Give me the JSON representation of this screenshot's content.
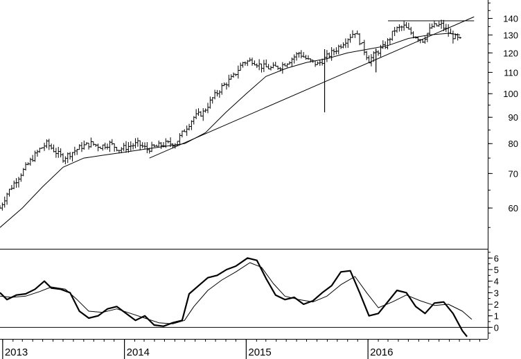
{
  "chart_data": [
    {
      "type": "bar",
      "subtype": "ohlc-weekly",
      "title": "",
      "ylabel": "",
      "yscale": "log",
      "ylim": [
        50,
        152
      ],
      "price_ticks": [
        "60",
        "70",
        "80",
        "90",
        "100",
        "110",
        "120",
        "130",
        "140"
      ],
      "price_tick_values": [
        60,
        70,
        80,
        90,
        100,
        110,
        120,
        130,
        140
      ],
      "price_path": [
        [
          "2012-12-24",
          60
        ],
        [
          "2013-01-14",
          64
        ],
        [
          "2013-02-04",
          67
        ],
        [
          "2013-02-25",
          70
        ],
        [
          "2013-03-25",
          74
        ],
        [
          "2013-04-22",
          78
        ],
        [
          "2013-05-13",
          80
        ],
        [
          "2013-06-10",
          77
        ],
        [
          "2013-07-01",
          75
        ],
        [
          "2013-07-29",
          77
        ],
        [
          "2013-08-26",
          79
        ],
        [
          "2013-09-23",
          80
        ],
        [
          "2013-10-21",
          79
        ],
        [
          "2013-11-18",
          80
        ],
        [
          "2013-12-16",
          78
        ],
        [
          "2014-01-13",
          79
        ],
        [
          "2014-02-10",
          80
        ],
        [
          "2014-03-10",
          78
        ],
        [
          "2014-04-07",
          79
        ],
        [
          "2014-05-05",
          80
        ],
        [
          "2014-06-02",
          80
        ],
        [
          "2014-06-30",
          85
        ],
        [
          "2014-07-28",
          90
        ],
        [
          "2014-08-25",
          92
        ],
        [
          "2014-09-22",
          98
        ],
        [
          "2014-10-20",
          103
        ],
        [
          "2014-11-24",
          108
        ],
        [
          "2014-12-22",
          115
        ],
        [
          "2015-01-19",
          116
        ],
        [
          "2015-02-16",
          113
        ],
        [
          "2015-03-16",
          112
        ],
        [
          "2015-04-13",
          113
        ],
        [
          "2015-05-11",
          116
        ],
        [
          "2015-06-08",
          120
        ],
        [
          "2015-07-06",
          116
        ],
        [
          "2015-08-03",
          114
        ],
        [
          "2015-08-31",
          118
        ],
        [
          "2015-09-28",
          122
        ],
        [
          "2015-10-26",
          127
        ],
        [
          "2015-11-23",
          132
        ],
        [
          "2015-12-14",
          124
        ],
        [
          "2016-01-04",
          116
        ],
        [
          "2016-01-25",
          120
        ],
        [
          "2016-02-22",
          124
        ],
        [
          "2016-03-21",
          133
        ],
        [
          "2016-04-18",
          135
        ],
        [
          "2016-05-16",
          130
        ],
        [
          "2016-06-13",
          127
        ],
        [
          "2016-07-11",
          135
        ],
        [
          "2016-08-08",
          136
        ],
        [
          "2016-09-05",
          130
        ],
        [
          "2016-10-03",
          127
        ]
      ],
      "bar_wiggle_pct": 2.2,
      "spikes": [
        {
          "date": "2015-08-24",
          "low": 92,
          "high": 122
        },
        {
          "date": "2016-01-25",
          "low": 110,
          "high": 122
        }
      ],
      "moving_average": [
        [
          "2012-12-24",
          55
        ],
        [
          "2013-03-01",
          60
        ],
        [
          "2013-05-01",
          66
        ],
        [
          "2013-07-01",
          72
        ],
        [
          "2013-09-01",
          75
        ],
        [
          "2013-11-01",
          76
        ],
        [
          "2014-01-01",
          77
        ],
        [
          "2014-03-01",
          78
        ],
        [
          "2014-05-01",
          79
        ],
        [
          "2014-07-01",
          80
        ],
        [
          "2014-09-01",
          84
        ],
        [
          "2014-11-01",
          92
        ],
        [
          "2015-01-01",
          100
        ],
        [
          "2015-03-01",
          108
        ],
        [
          "2015-05-01",
          112
        ],
        [
          "2015-07-01",
          115
        ],
        [
          "2015-09-01",
          117
        ],
        [
          "2015-11-01",
          120
        ],
        [
          "2016-01-01",
          122
        ],
        [
          "2016-03-01",
          124
        ],
        [
          "2016-05-01",
          128
        ],
        [
          "2016-07-01",
          130
        ],
        [
          "2016-09-01",
          131
        ],
        [
          "2016-10-03",
          130
        ]
      ],
      "trendlines": [
        {
          "name": "support",
          "points": [
            [
              "2014-03-17",
              75
            ],
            [
              "2016-11-14",
              141
            ]
          ]
        },
        {
          "name": "resistance",
          "points": [
            [
              "2016-03-01",
              138.5
            ],
            [
              "2016-11-14",
              138.5
            ]
          ]
        }
      ]
    },
    {
      "type": "line",
      "subtype": "oscillator",
      "title": "",
      "ylabel": "",
      "ylim": [
        -1,
        6.8
      ],
      "ticks": [
        "0",
        "1",
        "2",
        "3",
        "4",
        "5",
        "6"
      ],
      "tick_values": [
        0,
        1,
        2,
        3,
        4,
        5,
        6
      ],
      "zero_line": 0,
      "series": [
        {
          "name": "",
          "style": "thick",
          "points": [
            [
              "2012-12-24",
              3.0
            ],
            [
              "2013-01-14",
              2.4
            ],
            [
              "2013-02-11",
              2.8
            ],
            [
              "2013-03-11",
              2.9
            ],
            [
              "2013-04-08",
              3.3
            ],
            [
              "2013-05-06",
              4.0
            ],
            [
              "2013-05-27",
              3.4
            ],
            [
              "2013-06-24",
              3.3
            ],
            [
              "2013-07-22",
              3.0
            ],
            [
              "2013-08-19",
              1.4
            ],
            [
              "2013-09-16",
              0.8
            ],
            [
              "2013-10-14",
              1.0
            ],
            [
              "2013-11-11",
              1.6
            ],
            [
              "2013-12-09",
              1.8
            ],
            [
              "2014-01-06",
              1.2
            ],
            [
              "2014-02-03",
              0.6
            ],
            [
              "2014-03-03",
              1.0
            ],
            [
              "2014-03-31",
              0.2
            ],
            [
              "2014-04-28",
              0.1
            ],
            [
              "2014-05-26",
              0.4
            ],
            [
              "2014-06-23",
              0.6
            ],
            [
              "2014-07-14",
              2.9
            ],
            [
              "2014-08-11",
              3.6
            ],
            [
              "2014-09-08",
              4.3
            ],
            [
              "2014-10-06",
              4.5
            ],
            [
              "2014-11-03",
              5.0
            ],
            [
              "2014-12-01",
              5.3
            ],
            [
              "2015-01-05",
              6.0
            ],
            [
              "2015-02-02",
              5.8
            ],
            [
              "2015-03-02",
              4.2
            ],
            [
              "2015-03-30",
              2.8
            ],
            [
              "2015-04-27",
              2.4
            ],
            [
              "2015-05-25",
              2.6
            ],
            [
              "2015-06-22",
              2.0
            ],
            [
              "2015-07-20",
              2.3
            ],
            [
              "2015-08-17",
              3.0
            ],
            [
              "2015-09-14",
              3.6
            ],
            [
              "2015-10-12",
              4.8
            ],
            [
              "2015-11-09",
              4.9
            ],
            [
              "2015-12-07",
              3.0
            ],
            [
              "2016-01-04",
              1.0
            ],
            [
              "2016-02-01",
              1.2
            ],
            [
              "2016-02-29",
              2.2
            ],
            [
              "2016-03-28",
              3.2
            ],
            [
              "2016-04-25",
              3.0
            ],
            [
              "2016-05-23",
              1.8
            ],
            [
              "2016-06-20",
              1.2
            ],
            [
              "2016-07-18",
              2.1
            ],
            [
              "2016-08-15",
              2.2
            ],
            [
              "2016-09-12",
              1.2
            ],
            [
              "2016-10-10",
              -0.3
            ],
            [
              "2016-10-24",
              -0.8
            ]
          ]
        },
        {
          "name": "",
          "style": "thin",
          "points": [
            [
              "2012-12-24",
              2.7
            ],
            [
              "2013-01-28",
              2.6
            ],
            [
              "2013-03-11",
              2.7
            ],
            [
              "2013-04-22",
              3.1
            ],
            [
              "2013-05-27",
              3.5
            ],
            [
              "2013-07-08",
              3.3
            ],
            [
              "2013-08-12",
              2.4
            ],
            [
              "2013-09-16",
              1.4
            ],
            [
              "2013-10-28",
              1.3
            ],
            [
              "2013-12-09",
              1.6
            ],
            [
              "2014-01-20",
              1.2
            ],
            [
              "2014-03-03",
              0.8
            ],
            [
              "2014-04-14",
              0.4
            ],
            [
              "2014-05-26",
              0.3
            ],
            [
              "2014-06-30",
              0.6
            ],
            [
              "2014-07-28",
              1.8
            ],
            [
              "2014-09-08",
              3.2
            ],
            [
              "2014-10-20",
              4.1
            ],
            [
              "2014-12-01",
              4.8
            ],
            [
              "2015-01-12",
              5.6
            ],
            [
              "2015-02-16",
              5.2
            ],
            [
              "2015-03-23",
              3.8
            ],
            [
              "2015-04-27",
              2.7
            ],
            [
              "2015-06-08",
              2.4
            ],
            [
              "2015-07-20",
              2.2
            ],
            [
              "2015-08-31",
              2.7
            ],
            [
              "2015-10-12",
              3.7
            ],
            [
              "2015-11-23",
              4.4
            ],
            [
              "2015-12-28",
              3.0
            ],
            [
              "2016-02-01",
              1.7
            ],
            [
              "2016-03-14",
              2.2
            ],
            [
              "2016-04-25",
              2.8
            ],
            [
              "2016-06-06",
              2.3
            ],
            [
              "2016-07-18",
              1.9
            ],
            [
              "2016-08-29",
              2.0
            ],
            [
              "2016-10-10",
              1.4
            ],
            [
              "2016-11-07",
              0.7
            ]
          ]
        }
      ]
    }
  ],
  "time_axis": {
    "labels": [
      "2013",
      "2014",
      "2015",
      "2016"
    ],
    "dates": [
      "2013-01-01",
      "2014-01-01",
      "2015-01-01",
      "2016-01-01"
    ],
    "range": [
      "2012-12-24",
      "2016-12-25"
    ]
  }
}
